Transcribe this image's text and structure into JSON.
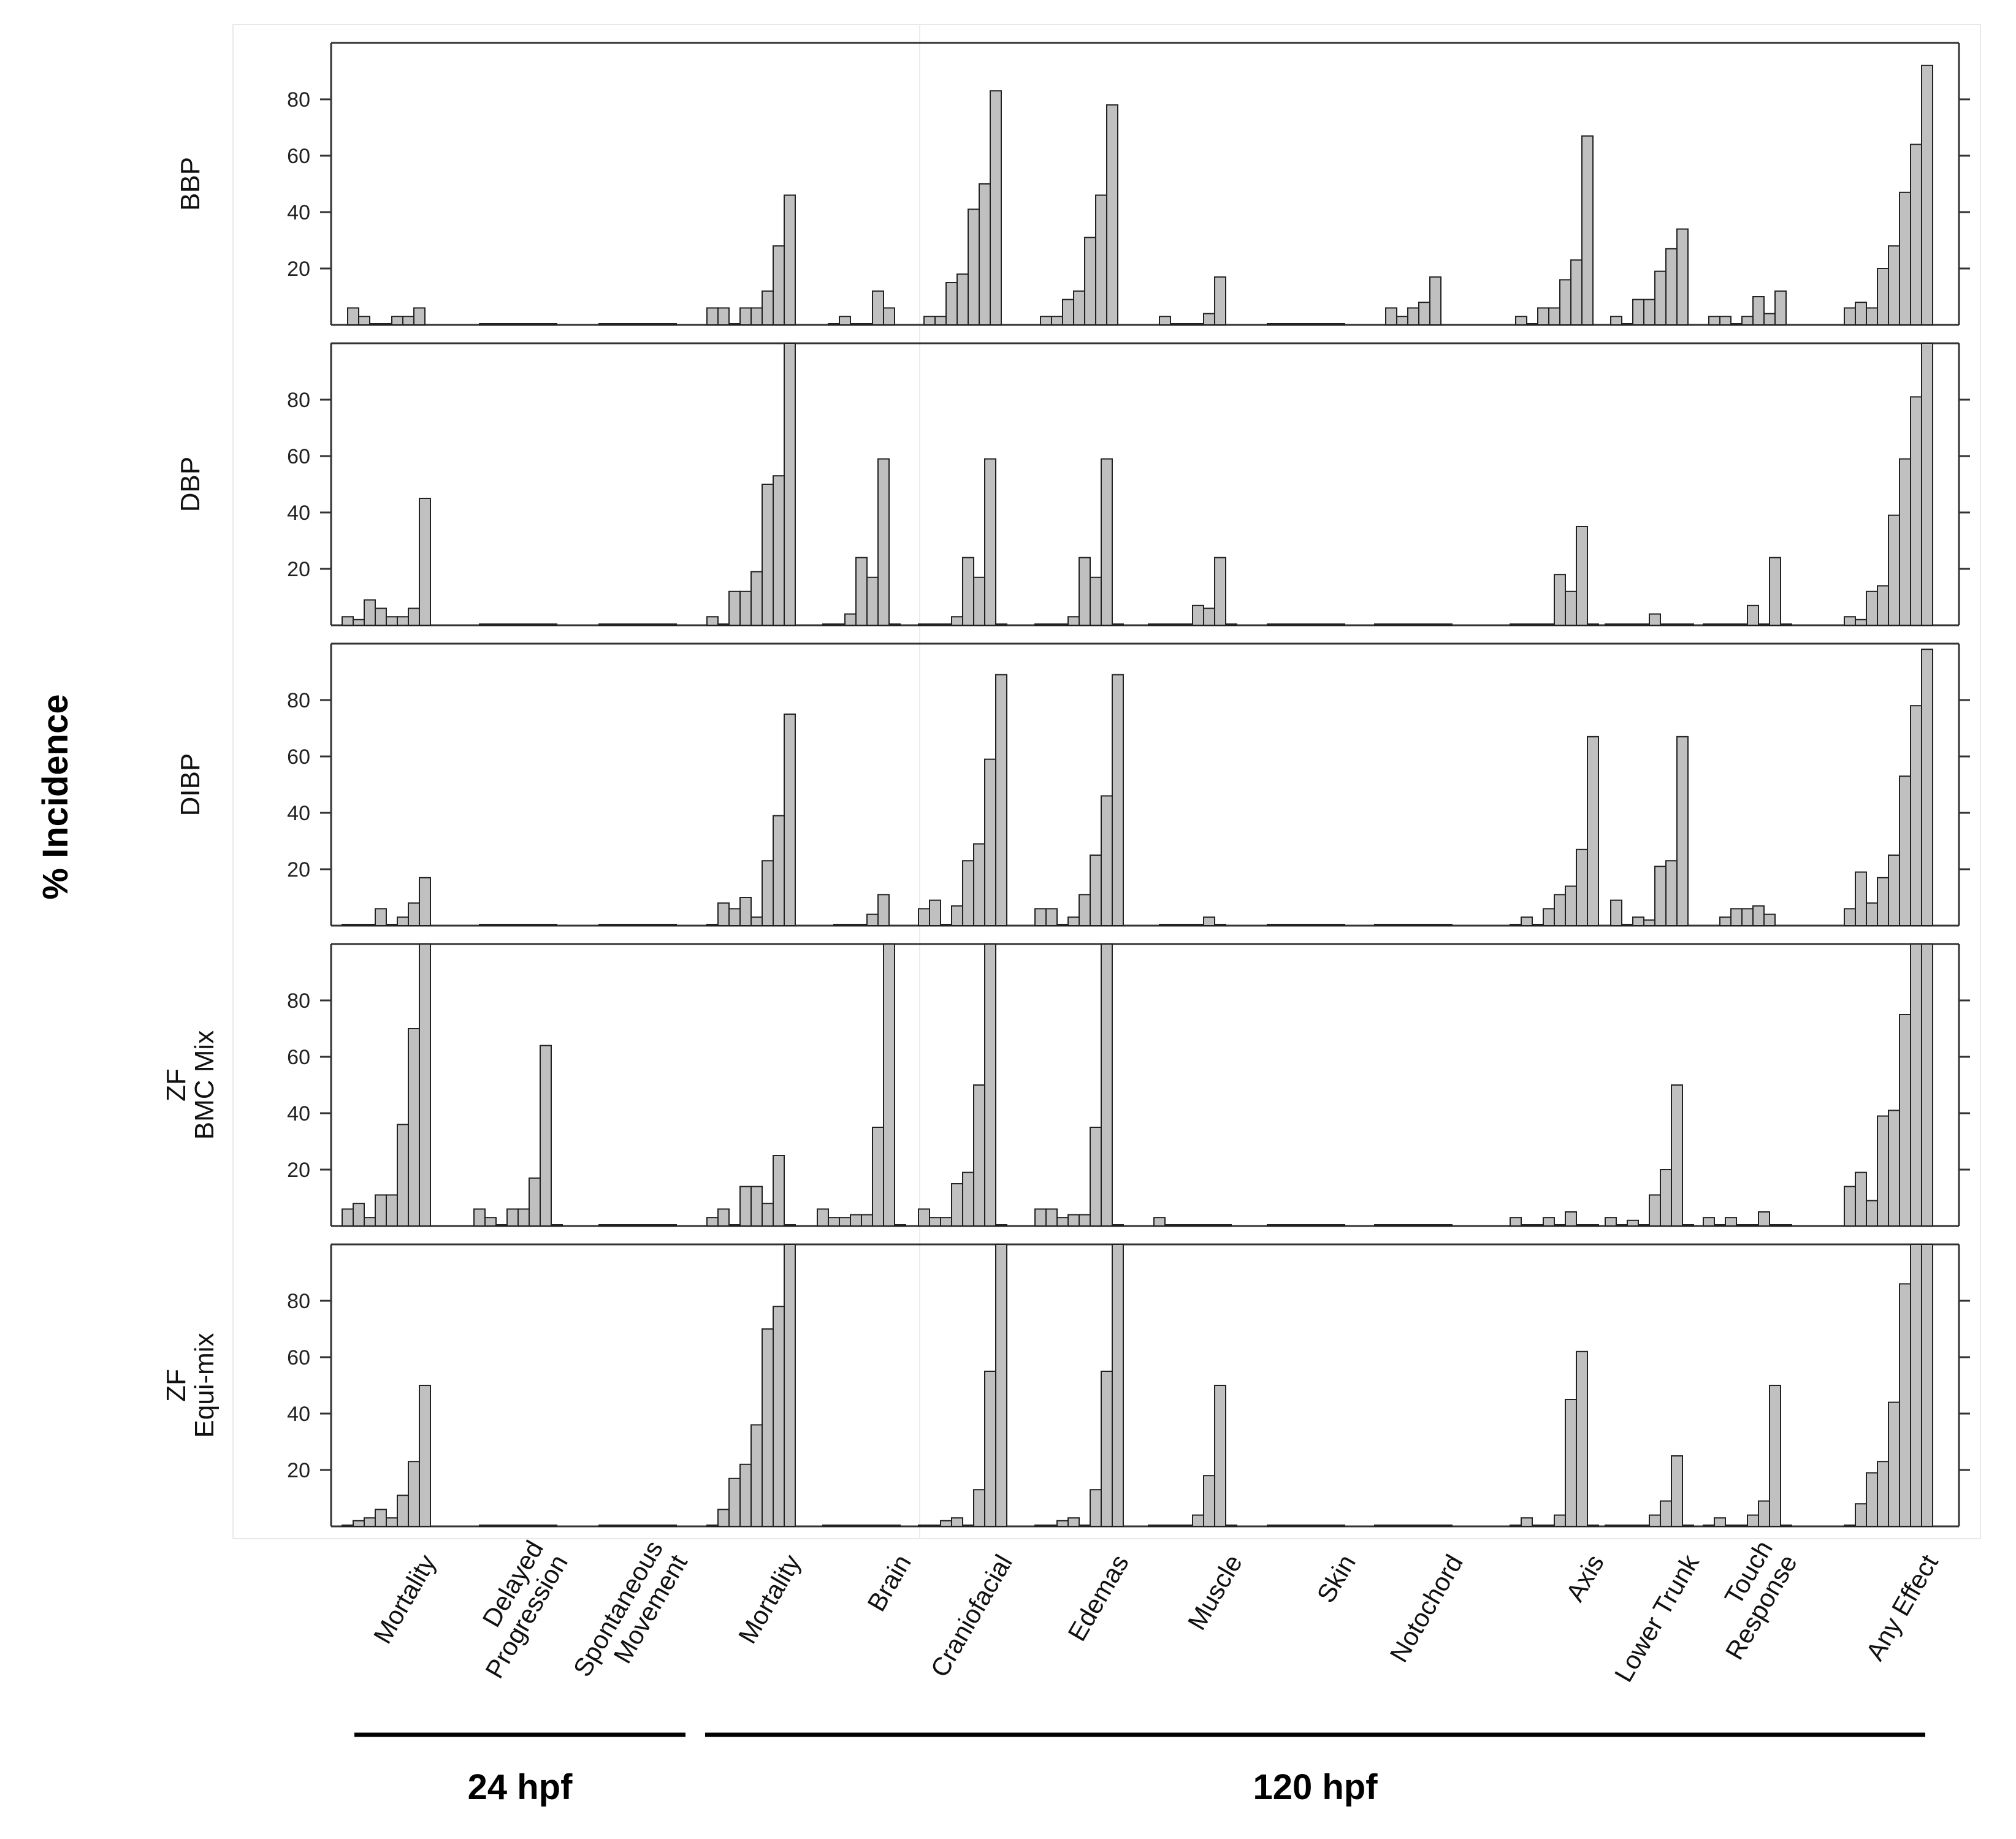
{
  "chart_data": {
    "type": "bar",
    "ylabel": "% Incidence",
    "ylim": [
      0,
      100
    ],
    "y_ticks": [
      20,
      40,
      60,
      80
    ],
    "categories": [
      "Mortality",
      "Delayed Progression",
      "Spontaneous Movement",
      "Mortality",
      "Brain",
      "Craniofacial",
      "Edemas",
      "Muscle",
      "Skin",
      "Notochord",
      "Axis",
      "Lower Trunk",
      "Touch Response",
      "Any Effect"
    ],
    "category_lines": [
      [
        "Mortality"
      ],
      [
        "Delayed",
        "Progression"
      ],
      [
        "Spontaneous",
        "Movement"
      ],
      [
        "Mortality"
      ],
      [
        "Brain"
      ],
      [
        "Craniofacial"
      ],
      [
        "Edemas"
      ],
      [
        "Muscle"
      ],
      [
        "Skin"
      ],
      [
        "Notochord"
      ],
      [
        "Axis"
      ],
      [
        "Lower Trunk"
      ],
      [
        "Touch",
        "Response"
      ],
      [
        "Any Effect"
      ]
    ],
    "groups": [
      {
        "label": "24 hpf",
        "categories": [
          "Mortality",
          "Delayed Progression",
          "Spontaneous Movement"
        ]
      },
      {
        "label": "120 hpf",
        "categories": [
          "Mortality",
          "Brain",
          "Craniofacial",
          "Edemas",
          "Muscle",
          "Skin",
          "Notochord",
          "Axis",
          "Lower Trunk",
          "Touch Response",
          "Any Effect"
        ]
      }
    ],
    "bar_color": "#c0c0c0",
    "panels": [
      {
        "label_lines": [
          "BBP"
        ],
        "values": [
          [
            6,
            3,
            0,
            0,
            3,
            3,
            6
          ],
          [
            0,
            0,
            0,
            0,
            0,
            0,
            0
          ],
          [
            0,
            0,
            0,
            0,
            0,
            0,
            0
          ],
          [
            6,
            6,
            0,
            6,
            6,
            12,
            28,
            46
          ],
          [
            0,
            3,
            0,
            0,
            12,
            6
          ],
          [
            3,
            3,
            15,
            18,
            41,
            50,
            83
          ],
          [
            3,
            3,
            9,
            12,
            31,
            46,
            78
          ],
          [
            3,
            0,
            0,
            0,
            4,
            17
          ],
          [
            0,
            0,
            0,
            0,
            0,
            0,
            0
          ],
          [
            6,
            3,
            6,
            8,
            17
          ],
          [
            3,
            0,
            6,
            6,
            16,
            23,
            67
          ],
          [
            3,
            0,
            9,
            9,
            19,
            27,
            34
          ],
          [
            3,
            3,
            0,
            3,
            10,
            4,
            12
          ],
          [
            6,
            8,
            6,
            20,
            28,
            47,
            64,
            92
          ]
        ]
      },
      {
        "label_lines": [
          "DBP"
        ],
        "values": [
          [
            3,
            2,
            9,
            6,
            3,
            3,
            6,
            45
          ],
          [
            0,
            0,
            0,
            0,
            0,
            0,
            0
          ],
          [
            0,
            0,
            0,
            0,
            0,
            0,
            0
          ],
          [
            3,
            0,
            12,
            12,
            19,
            50,
            53,
            100
          ],
          [
            0,
            0,
            4,
            24,
            17,
            59,
            0
          ],
          [
            0,
            0,
            0,
            3,
            24,
            17,
            59,
            0
          ],
          [
            0,
            0,
            0,
            3,
            24,
            17,
            59,
            0
          ],
          [
            0,
            0,
            0,
            0,
            7,
            6,
            24,
            0
          ],
          [
            0,
            0,
            0,
            0,
            0,
            0,
            0
          ],
          [
            0,
            0,
            0,
            0,
            0,
            0,
            0
          ],
          [
            0,
            0,
            0,
            0,
            18,
            12,
            35,
            0
          ],
          [
            0,
            0,
            0,
            0,
            4,
            0,
            0,
            0
          ],
          [
            0,
            0,
            0,
            0,
            7,
            0,
            24,
            0
          ],
          [
            3,
            2,
            12,
            14,
            39,
            59,
            81,
            100
          ]
        ]
      },
      {
        "label_lines": [
          "DIBP"
        ],
        "values": [
          [
            0,
            0,
            0,
            6,
            0,
            3,
            8,
            17
          ],
          [
            0,
            0,
            0,
            0,
            0,
            0,
            0
          ],
          [
            0,
            0,
            0,
            0,
            0,
            0,
            0
          ],
          [
            0,
            8,
            6,
            10,
            3,
            23,
            39,
            75
          ],
          [
            0,
            0,
            0,
            4,
            11
          ],
          [
            6,
            9,
            0,
            7,
            23,
            29,
            59,
            89
          ],
          [
            6,
            6,
            0,
            3,
            11,
            25,
            46,
            89
          ],
          [
            0,
            0,
            0,
            0,
            3,
            0
          ],
          [
            0,
            0,
            0,
            0,
            0,
            0,
            0
          ],
          [
            0,
            0,
            0,
            0,
            0,
            0,
            0
          ],
          [
            0,
            3,
            0,
            6,
            11,
            14,
            27,
            67
          ],
          [
            9,
            0,
            3,
            2,
            21,
            23,
            67
          ],
          [
            3,
            6,
            6,
            7,
            4
          ],
          [
            6,
            19,
            8,
            17,
            25,
            53,
            78,
            98
          ]
        ]
      },
      {
        "label_lines": [
          "ZF",
          "BMC Mix"
        ],
        "values": [
          [
            6,
            8,
            3,
            11,
            11,
            36,
            70,
            100
          ],
          [
            6,
            3,
            0,
            6,
            6,
            17,
            64,
            0
          ],
          [
            0,
            0,
            0,
            0,
            0,
            0,
            0
          ],
          [
            3,
            6,
            0,
            14,
            14,
            8,
            25,
            0
          ],
          [
            6,
            3,
            3,
            4,
            4,
            35,
            100,
            0
          ],
          [
            6,
            3,
            3,
            15,
            19,
            50,
            100,
            0
          ],
          [
            6,
            6,
            3,
            4,
            4,
            35,
            100,
            0
          ],
          [
            3,
            0,
            0,
            0,
            0,
            0,
            0
          ],
          [
            0,
            0,
            0,
            0,
            0,
            0,
            0
          ],
          [
            0,
            0,
            0,
            0,
            0,
            0,
            0
          ],
          [
            3,
            0,
            0,
            3,
            0,
            5,
            0,
            0
          ],
          [
            3,
            0,
            2,
            0,
            11,
            20,
            50,
            0
          ],
          [
            3,
            0,
            3,
            0,
            0,
            5,
            0,
            0
          ],
          [
            14,
            19,
            9,
            39,
            41,
            75,
            100,
            100
          ]
        ]
      },
      {
        "label_lines": [
          "ZF",
          "Equi-mix"
        ],
        "values": [
          [
            0,
            2,
            3,
            6,
            3,
            11,
            23,
            50
          ],
          [
            0,
            0,
            0,
            0,
            0,
            0,
            0
          ],
          [
            0,
            0,
            0,
            0,
            0,
            0,
            0
          ],
          [
            0,
            6,
            17,
            22,
            36,
            70,
            78,
            100
          ],
          [
            0,
            0,
            0,
            0,
            0,
            0,
            0
          ],
          [
            0,
            0,
            2,
            3,
            0,
            13,
            55,
            100
          ],
          [
            0,
            0,
            2,
            3,
            0,
            13,
            55,
            100
          ],
          [
            0,
            0,
            0,
            0,
            4,
            18,
            50,
            0
          ],
          [
            0,
            0,
            0,
            0,
            0,
            0,
            0
          ],
          [
            0,
            0,
            0,
            0,
            0,
            0,
            0
          ],
          [
            0,
            3,
            0,
            0,
            4,
            45,
            62,
            0
          ],
          [
            0,
            0,
            0,
            0,
            4,
            9,
            25,
            0
          ],
          [
            0,
            3,
            0,
            0,
            4,
            9,
            50,
            0
          ],
          [
            0,
            8,
            19,
            23,
            44,
            86,
            100,
            100
          ]
        ]
      }
    ]
  }
}
